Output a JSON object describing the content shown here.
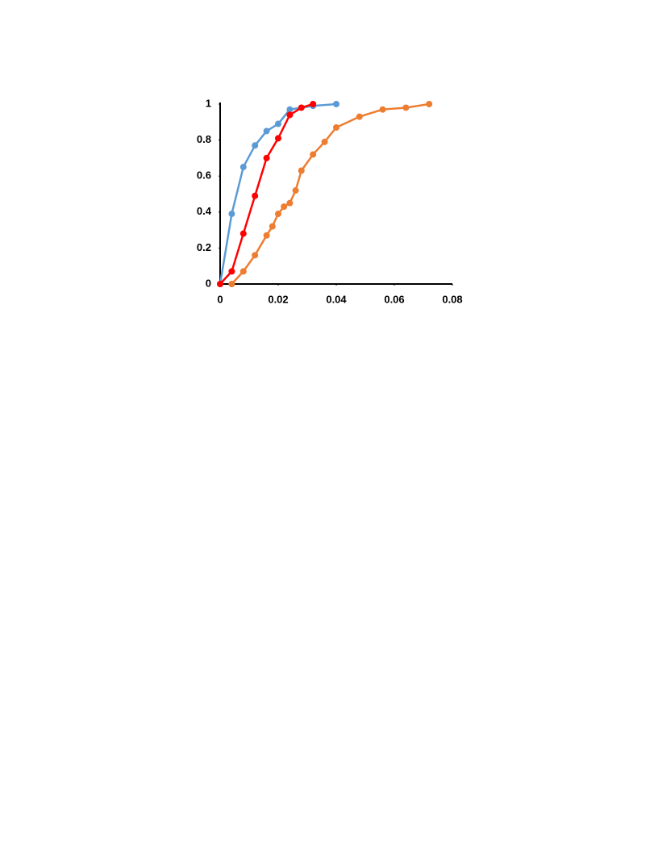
{
  "chart_data": {
    "type": "scatter",
    "lines": true,
    "xlim": [
      0,
      0.08
    ],
    "ylim": [
      0,
      1
    ],
    "xticks": [
      0,
      0.02,
      0.04,
      0.06,
      0.08
    ],
    "yticks": [
      0,
      0.2,
      0.4,
      0.6,
      0.8,
      1
    ],
    "grid": false,
    "series": [
      {
        "color": "#5b9bd5",
        "x": [
          0,
          0.004,
          0.008,
          0.012,
          0.016,
          0.02,
          0.024,
          0.032,
          0.04
        ],
        "values": [
          0,
          0.39,
          0.65,
          0.77,
          0.85,
          0.89,
          0.97,
          0.99,
          1.0
        ]
      },
      {
        "color": "#ed7d31",
        "x": [
          0.004,
          0.008,
          0.012,
          0.016,
          0.018,
          0.02,
          0.022,
          0.024,
          0.026,
          0.028,
          0.032,
          0.036,
          0.04,
          0.048,
          0.056,
          0.064,
          0.072
        ],
        "values": [
          0,
          0.07,
          0.16,
          0.27,
          0.32,
          0.39,
          0.43,
          0.45,
          0.52,
          0.63,
          0.72,
          0.79,
          0.87,
          0.93,
          0.97,
          0.98,
          1.0
        ]
      },
      {
        "color": "#ff0000",
        "x": [
          0,
          0.004,
          0.008,
          0.012,
          0.016,
          0.02,
          0.024,
          0.028,
          0.032
        ],
        "values": [
          0,
          0.07,
          0.28,
          0.49,
          0.7,
          0.81,
          0.94,
          0.98,
          1.0
        ]
      }
    ]
  }
}
